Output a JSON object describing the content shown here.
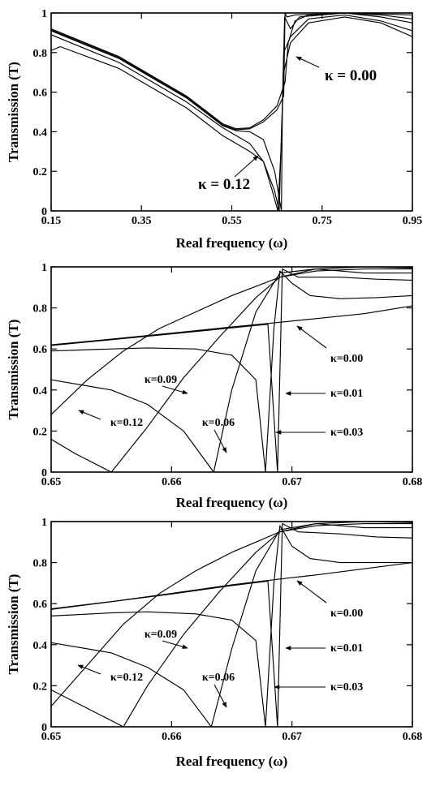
{
  "chart_data": [
    {
      "type": "line",
      "xlabel": "Real frequency  (ω)",
      "ylabel": "Transmission (T)",
      "xlim": [
        0.15,
        0.95
      ],
      "ylim": [
        0,
        1
      ],
      "xticks": [
        "0.15",
        "0.35",
        "0.55",
        "0.75",
        "0.95"
      ],
      "yticks": [
        "0",
        "0.2",
        "0.4",
        "0.6",
        "0.8",
        "1"
      ],
      "grid": false,
      "annotations": [
        {
          "text": "κ = 0.00",
          "x": 0.668,
          "y": 0.82
        },
        {
          "text": "κ = 0.12",
          "x": 0.595,
          "y": 0.24
        }
      ],
      "series": [
        {
          "points": [
            [
              0.15,
              0.92
            ],
            [
              0.3,
              0.78
            ],
            [
              0.45,
              0.58
            ],
            [
              0.53,
              0.44
            ],
            [
              0.56,
              0.415
            ],
            [
              0.59,
              0.42
            ],
            [
              0.62,
              0.46
            ],
            [
              0.65,
              0.53
            ],
            [
              0.668,
              0.65
            ],
            [
              0.675,
              0.85
            ],
            [
              0.69,
              0.96
            ],
            [
              0.72,
              0.99
            ],
            [
              0.8,
              1.0
            ],
            [
              0.88,
              0.995
            ],
            [
              0.95,
              0.99
            ]
          ]
        },
        {
          "points": [
            [
              0.15,
              0.915
            ],
            [
              0.3,
              0.775
            ],
            [
              0.45,
              0.575
            ],
            [
              0.53,
              0.435
            ],
            [
              0.56,
              0.41
            ],
            [
              0.59,
              0.415
            ],
            [
              0.62,
              0.45
            ],
            [
              0.65,
              0.51
            ],
            [
              0.665,
              0.58
            ],
            [
              0.668,
              1.0
            ],
            [
              0.672,
              0.98
            ],
            [
              0.69,
              0.99
            ],
            [
              0.8,
              1.0
            ],
            [
              0.88,
              0.99
            ],
            [
              0.95,
              0.97
            ]
          ]
        },
        {
          "points": [
            [
              0.15,
              0.91
            ],
            [
              0.3,
              0.77
            ],
            [
              0.45,
              0.57
            ],
            [
              0.53,
              0.43
            ],
            [
              0.56,
              0.405
            ],
            [
              0.59,
              0.4
            ],
            [
              0.62,
              0.36
            ],
            [
              0.645,
              0.2
            ],
            [
              0.66,
              0.0
            ],
            [
              0.662,
              0.5
            ],
            [
              0.667,
              0.98
            ],
            [
              0.68,
              0.92
            ],
            [
              0.7,
              0.98
            ],
            [
              0.8,
              1.0
            ],
            [
              0.88,
              0.98
            ],
            [
              0.95,
              0.95
            ]
          ]
        },
        {
          "points": [
            [
              0.15,
              0.89
            ],
            [
              0.3,
              0.75
            ],
            [
              0.45,
              0.55
            ],
            [
              0.53,
              0.42
            ],
            [
              0.56,
              0.38
            ],
            [
              0.59,
              0.34
            ],
            [
              0.62,
              0.25
            ],
            [
              0.64,
              0.1
            ],
            [
              0.652,
              0.0
            ],
            [
              0.66,
              0.35
            ],
            [
              0.665,
              0.8
            ],
            [
              0.68,
              0.88
            ],
            [
              0.72,
              0.97
            ],
            [
              0.8,
              0.99
            ],
            [
              0.88,
              0.96
            ],
            [
              0.95,
              0.91
            ]
          ]
        },
        {
          "points": [
            [
              0.15,
              0.81
            ],
            [
              0.17,
              0.83
            ],
            [
              0.3,
              0.72
            ],
            [
              0.45,
              0.52
            ],
            [
              0.53,
              0.38
            ],
            [
              0.56,
              0.34
            ],
            [
              0.59,
              0.3
            ],
            [
              0.62,
              0.25
            ],
            [
              0.645,
              0.1
            ],
            [
              0.655,
              0.0
            ],
            [
              0.66,
              0.4
            ],
            [
              0.665,
              0.7
            ],
            [
              0.68,
              0.85
            ],
            [
              0.72,
              0.95
            ],
            [
              0.8,
              0.98
            ],
            [
              0.88,
              0.95
            ],
            [
              0.95,
              0.88
            ]
          ]
        }
      ]
    },
    {
      "type": "line",
      "xlabel": "Real frequency  (ω)",
      "ylabel": "Transmission (T)",
      "xlim": [
        0.65,
        0.68
      ],
      "ylim": [
        0,
        1
      ],
      "xticks": [
        "0.65",
        "0.66",
        "0.67",
        "0.68"
      ],
      "yticks": [
        "0",
        "0.2",
        "0.4",
        "0.6",
        "0.8",
        "1"
      ],
      "grid": false,
      "annotations": [
        {
          "text": "κ=0.00",
          "x": 0.6736,
          "y": 0.45
        },
        {
          "text": "κ=0.01",
          "x": 0.6736,
          "y": 0.41
        },
        {
          "text": "κ=0.03",
          "x": 0.6736,
          "y": 0.24
        },
        {
          "text": "κ=0.09",
          "x": 0.6577,
          "y": 0.44
        },
        {
          "text": "κ=0.12",
          "x": 0.6526,
          "y": 0.21
        },
        {
          "text": "κ=0.06",
          "x": 0.6603,
          "y": 0.21
        }
      ],
      "series": [
        {
          "points": [
            [
              0.65,
              0.62
            ],
            [
              0.655,
              0.648
            ],
            [
              0.66,
              0.677
            ],
            [
              0.665,
              0.707
            ],
            [
              0.669,
              0.73
            ],
            [
              0.672,
              0.748
            ],
            [
              0.676,
              0.772
            ],
            [
              0.68,
              0.81
            ]
          ]
        },
        {
          "points": [
            [
              0.65,
              0.617
            ],
            [
              0.66,
              0.673
            ],
            [
              0.665,
              0.703
            ],
            [
              0.668,
              0.72
            ],
            [
              0.6688,
              0.0
            ],
            [
              0.6692,
              0.99
            ],
            [
              0.6705,
              0.95
            ],
            [
              0.674,
              0.95
            ],
            [
              0.677,
              0.94
            ],
            [
              0.68,
              0.935
            ]
          ]
        },
        {
          "points": [
            [
              0.65,
              0.59
            ],
            [
              0.655,
              0.6
            ],
            [
              0.658,
              0.605
            ],
            [
              0.662,
              0.6
            ],
            [
              0.665,
              0.57
            ],
            [
              0.667,
              0.45
            ],
            [
              0.6678,
              0.0
            ],
            [
              0.6685,
              0.7
            ],
            [
              0.669,
              0.98
            ],
            [
              0.67,
              0.92
            ],
            [
              0.6715,
              0.86
            ],
            [
              0.674,
              0.845
            ],
            [
              0.677,
              0.85
            ],
            [
              0.68,
              0.86
            ]
          ]
        },
        {
          "points": [
            [
              0.65,
              0.45
            ],
            [
              0.655,
              0.4
            ],
            [
              0.658,
              0.33
            ],
            [
              0.661,
              0.2
            ],
            [
              0.6635,
              0.0
            ],
            [
              0.665,
              0.4
            ],
            [
              0.667,
              0.78
            ],
            [
              0.669,
              0.97
            ],
            [
              0.672,
              0.99
            ],
            [
              0.676,
              0.97
            ],
            [
              0.68,
              0.97
            ]
          ]
        },
        {
          "points": [
            [
              0.65,
              0.16
            ],
            [
              0.652,
              0.09
            ],
            [
              0.655,
              0.0
            ],
            [
              0.658,
              0.22
            ],
            [
              0.661,
              0.46
            ],
            [
              0.664,
              0.66
            ],
            [
              0.667,
              0.85
            ],
            [
              0.669,
              0.95
            ],
            [
              0.672,
              0.99
            ],
            [
              0.676,
              1.0
            ],
            [
              0.68,
              0.995
            ]
          ]
        },
        {
          "points": [
            [
              0.65,
              0.28
            ],
            [
              0.653,
              0.45
            ],
            [
              0.656,
              0.59
            ],
            [
              0.659,
              0.7
            ],
            [
              0.662,
              0.78
            ],
            [
              0.665,
              0.86
            ],
            [
              0.667,
              0.905
            ],
            [
              0.669,
              0.95
            ],
            [
              0.672,
              0.98
            ],
            [
              0.676,
              0.99
            ],
            [
              0.68,
              0.99
            ]
          ]
        }
      ]
    },
    {
      "type": "line",
      "xlabel": "Real frequency  (ω)",
      "ylabel": "Transmission (T)",
      "xlim": [
        0.65,
        0.68
      ],
      "ylim": [
        0,
        1
      ],
      "xticks": [
        "0.65",
        "0.66",
        "0.67",
        "0.68"
      ],
      "yticks": [
        "0",
        "0.2",
        "0.4",
        "0.6",
        "0.8",
        "1"
      ],
      "grid": false,
      "annotations": [
        {
          "text": "κ=0.00",
          "x": 0.6736,
          "y": 0.45
        },
        {
          "text": "κ=0.01",
          "x": 0.6736,
          "y": 0.41
        },
        {
          "text": "κ=0.03",
          "x": 0.6736,
          "y": 0.24
        },
        {
          "text": "κ=0.09",
          "x": 0.6577,
          "y": 0.43
        },
        {
          "text": "κ=0.12",
          "x": 0.6526,
          "y": 0.2
        },
        {
          "text": "κ=0.06",
          "x": 0.6603,
          "y": 0.2
        }
      ],
      "series": [
        {
          "points": [
            [
              0.65,
              0.575
            ],
            [
              0.655,
              0.61
            ],
            [
              0.66,
              0.65
            ],
            [
              0.665,
              0.692
            ],
            [
              0.669,
              0.72
            ],
            [
              0.672,
              0.74
            ],
            [
              0.676,
              0.77
            ],
            [
              0.68,
              0.8
            ]
          ]
        },
        {
          "points": [
            [
              0.65,
              0.572
            ],
            [
              0.66,
              0.647
            ],
            [
              0.665,
              0.688
            ],
            [
              0.668,
              0.71
            ],
            [
              0.6688,
              0.0
            ],
            [
              0.6692,
              0.99
            ],
            [
              0.6705,
              0.95
            ],
            [
              0.674,
              0.94
            ],
            [
              0.677,
              0.925
            ],
            [
              0.68,
              0.92
            ]
          ]
        },
        {
          "points": [
            [
              0.65,
              0.54
            ],
            [
              0.655,
              0.555
            ],
            [
              0.658,
              0.56
            ],
            [
              0.662,
              0.55
            ],
            [
              0.665,
              0.52
            ],
            [
              0.667,
              0.42
            ],
            [
              0.6678,
              0.0
            ],
            [
              0.6685,
              0.7
            ],
            [
              0.669,
              0.98
            ],
            [
              0.67,
              0.88
            ],
            [
              0.6715,
              0.82
            ],
            [
              0.674,
              0.8
            ],
            [
              0.677,
              0.8
            ],
            [
              0.68,
              0.8
            ]
          ]
        },
        {
          "points": [
            [
              0.65,
              0.41
            ],
            [
              0.655,
              0.36
            ],
            [
              0.658,
              0.29
            ],
            [
              0.661,
              0.18
            ],
            [
              0.6633,
              0.0
            ],
            [
              0.665,
              0.38
            ],
            [
              0.667,
              0.76
            ],
            [
              0.669,
              0.96
            ],
            [
              0.672,
              0.99
            ],
            [
              0.676,
              0.97
            ],
            [
              0.68,
              0.97
            ]
          ]
        },
        {
          "points": [
            [
              0.65,
              0.18
            ],
            [
              0.653,
              0.09
            ],
            [
              0.656,
              0.0
            ],
            [
              0.658,
              0.2
            ],
            [
              0.661,
              0.45
            ],
            [
              0.664,
              0.66
            ],
            [
              0.667,
              0.85
            ],
            [
              0.669,
              0.95
            ],
            [
              0.672,
              0.99
            ],
            [
              0.676,
              1.0
            ],
            [
              0.68,
              0.995
            ]
          ]
        },
        {
          "points": [
            [
              0.65,
              0.1
            ],
            [
              0.653,
              0.3
            ],
            [
              0.656,
              0.5
            ],
            [
              0.659,
              0.65
            ],
            [
              0.662,
              0.76
            ],
            [
              0.665,
              0.85
            ],
            [
              0.667,
              0.9
            ],
            [
              0.669,
              0.95
            ],
            [
              0.672,
              0.98
            ],
            [
              0.676,
              0.99
            ],
            [
              0.68,
              0.99
            ]
          ]
        }
      ]
    }
  ]
}
